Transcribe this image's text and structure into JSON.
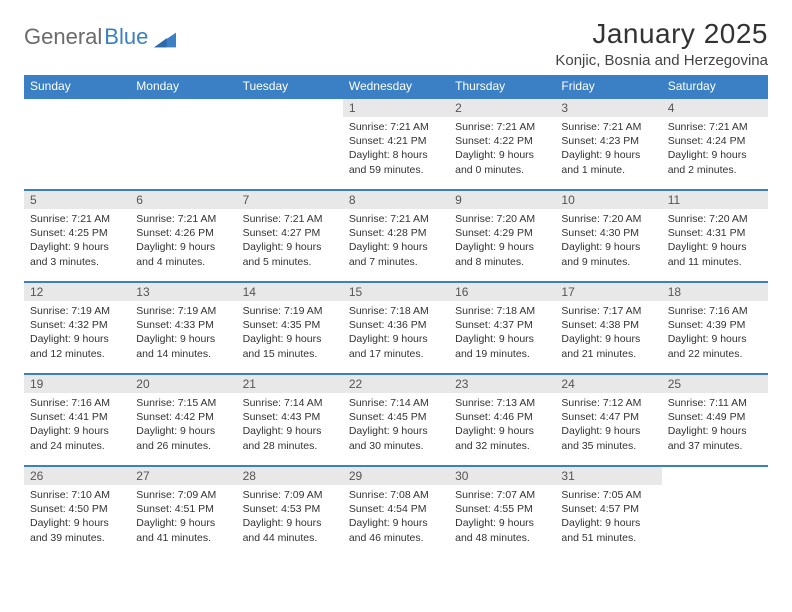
{
  "brand": {
    "part1": "General",
    "part2": "Blue"
  },
  "colors": {
    "brand_blue": "#3b7fc4",
    "brand_gray": "#6b6b6b",
    "header_row_bg": "#3b7fc4",
    "header_row_fg": "#ffffff",
    "daynum_bg": "#e8e8e8",
    "text": "#333333",
    "row_divider": "#3b7fc4"
  },
  "title": "January 2025",
  "location": "Konjic, Bosnia and Herzegovina",
  "weekdays": [
    "Sunday",
    "Monday",
    "Tuesday",
    "Wednesday",
    "Thursday",
    "Friday",
    "Saturday"
  ],
  "weeks": [
    [
      {
        "empty": true
      },
      {
        "empty": true
      },
      {
        "empty": true
      },
      {
        "num": "1",
        "sunrise": "Sunrise: 7:21 AM",
        "sunset": "Sunset: 4:21 PM",
        "daylight1": "Daylight: 8 hours",
        "daylight2": "and 59 minutes."
      },
      {
        "num": "2",
        "sunrise": "Sunrise: 7:21 AM",
        "sunset": "Sunset: 4:22 PM",
        "daylight1": "Daylight: 9 hours",
        "daylight2": "and 0 minutes."
      },
      {
        "num": "3",
        "sunrise": "Sunrise: 7:21 AM",
        "sunset": "Sunset: 4:23 PM",
        "daylight1": "Daylight: 9 hours",
        "daylight2": "and 1 minute."
      },
      {
        "num": "4",
        "sunrise": "Sunrise: 7:21 AM",
        "sunset": "Sunset: 4:24 PM",
        "daylight1": "Daylight: 9 hours",
        "daylight2": "and 2 minutes."
      }
    ],
    [
      {
        "num": "5",
        "sunrise": "Sunrise: 7:21 AM",
        "sunset": "Sunset: 4:25 PM",
        "daylight1": "Daylight: 9 hours",
        "daylight2": "and 3 minutes."
      },
      {
        "num": "6",
        "sunrise": "Sunrise: 7:21 AM",
        "sunset": "Sunset: 4:26 PM",
        "daylight1": "Daylight: 9 hours",
        "daylight2": "and 4 minutes."
      },
      {
        "num": "7",
        "sunrise": "Sunrise: 7:21 AM",
        "sunset": "Sunset: 4:27 PM",
        "daylight1": "Daylight: 9 hours",
        "daylight2": "and 5 minutes."
      },
      {
        "num": "8",
        "sunrise": "Sunrise: 7:21 AM",
        "sunset": "Sunset: 4:28 PM",
        "daylight1": "Daylight: 9 hours",
        "daylight2": "and 7 minutes."
      },
      {
        "num": "9",
        "sunrise": "Sunrise: 7:20 AM",
        "sunset": "Sunset: 4:29 PM",
        "daylight1": "Daylight: 9 hours",
        "daylight2": "and 8 minutes."
      },
      {
        "num": "10",
        "sunrise": "Sunrise: 7:20 AM",
        "sunset": "Sunset: 4:30 PM",
        "daylight1": "Daylight: 9 hours",
        "daylight2": "and 9 minutes."
      },
      {
        "num": "11",
        "sunrise": "Sunrise: 7:20 AM",
        "sunset": "Sunset: 4:31 PM",
        "daylight1": "Daylight: 9 hours",
        "daylight2": "and 11 minutes."
      }
    ],
    [
      {
        "num": "12",
        "sunrise": "Sunrise: 7:19 AM",
        "sunset": "Sunset: 4:32 PM",
        "daylight1": "Daylight: 9 hours",
        "daylight2": "and 12 minutes."
      },
      {
        "num": "13",
        "sunrise": "Sunrise: 7:19 AM",
        "sunset": "Sunset: 4:33 PM",
        "daylight1": "Daylight: 9 hours",
        "daylight2": "and 14 minutes."
      },
      {
        "num": "14",
        "sunrise": "Sunrise: 7:19 AM",
        "sunset": "Sunset: 4:35 PM",
        "daylight1": "Daylight: 9 hours",
        "daylight2": "and 15 minutes."
      },
      {
        "num": "15",
        "sunrise": "Sunrise: 7:18 AM",
        "sunset": "Sunset: 4:36 PM",
        "daylight1": "Daylight: 9 hours",
        "daylight2": "and 17 minutes."
      },
      {
        "num": "16",
        "sunrise": "Sunrise: 7:18 AM",
        "sunset": "Sunset: 4:37 PM",
        "daylight1": "Daylight: 9 hours",
        "daylight2": "and 19 minutes."
      },
      {
        "num": "17",
        "sunrise": "Sunrise: 7:17 AM",
        "sunset": "Sunset: 4:38 PM",
        "daylight1": "Daylight: 9 hours",
        "daylight2": "and 21 minutes."
      },
      {
        "num": "18",
        "sunrise": "Sunrise: 7:16 AM",
        "sunset": "Sunset: 4:39 PM",
        "daylight1": "Daylight: 9 hours",
        "daylight2": "and 22 minutes."
      }
    ],
    [
      {
        "num": "19",
        "sunrise": "Sunrise: 7:16 AM",
        "sunset": "Sunset: 4:41 PM",
        "daylight1": "Daylight: 9 hours",
        "daylight2": "and 24 minutes."
      },
      {
        "num": "20",
        "sunrise": "Sunrise: 7:15 AM",
        "sunset": "Sunset: 4:42 PM",
        "daylight1": "Daylight: 9 hours",
        "daylight2": "and 26 minutes."
      },
      {
        "num": "21",
        "sunrise": "Sunrise: 7:14 AM",
        "sunset": "Sunset: 4:43 PM",
        "daylight1": "Daylight: 9 hours",
        "daylight2": "and 28 minutes."
      },
      {
        "num": "22",
        "sunrise": "Sunrise: 7:14 AM",
        "sunset": "Sunset: 4:45 PM",
        "daylight1": "Daylight: 9 hours",
        "daylight2": "and 30 minutes."
      },
      {
        "num": "23",
        "sunrise": "Sunrise: 7:13 AM",
        "sunset": "Sunset: 4:46 PM",
        "daylight1": "Daylight: 9 hours",
        "daylight2": "and 32 minutes."
      },
      {
        "num": "24",
        "sunrise": "Sunrise: 7:12 AM",
        "sunset": "Sunset: 4:47 PM",
        "daylight1": "Daylight: 9 hours",
        "daylight2": "and 35 minutes."
      },
      {
        "num": "25",
        "sunrise": "Sunrise: 7:11 AM",
        "sunset": "Sunset: 4:49 PM",
        "daylight1": "Daylight: 9 hours",
        "daylight2": "and 37 minutes."
      }
    ],
    [
      {
        "num": "26",
        "sunrise": "Sunrise: 7:10 AM",
        "sunset": "Sunset: 4:50 PM",
        "daylight1": "Daylight: 9 hours",
        "daylight2": "and 39 minutes."
      },
      {
        "num": "27",
        "sunrise": "Sunrise: 7:09 AM",
        "sunset": "Sunset: 4:51 PM",
        "daylight1": "Daylight: 9 hours",
        "daylight2": "and 41 minutes."
      },
      {
        "num": "28",
        "sunrise": "Sunrise: 7:09 AM",
        "sunset": "Sunset: 4:53 PM",
        "daylight1": "Daylight: 9 hours",
        "daylight2": "and 44 minutes."
      },
      {
        "num": "29",
        "sunrise": "Sunrise: 7:08 AM",
        "sunset": "Sunset: 4:54 PM",
        "daylight1": "Daylight: 9 hours",
        "daylight2": "and 46 minutes."
      },
      {
        "num": "30",
        "sunrise": "Sunrise: 7:07 AM",
        "sunset": "Sunset: 4:55 PM",
        "daylight1": "Daylight: 9 hours",
        "daylight2": "and 48 minutes."
      },
      {
        "num": "31",
        "sunrise": "Sunrise: 7:05 AM",
        "sunset": "Sunset: 4:57 PM",
        "daylight1": "Daylight: 9 hours",
        "daylight2": "and 51 minutes."
      },
      {
        "empty": true
      }
    ]
  ]
}
